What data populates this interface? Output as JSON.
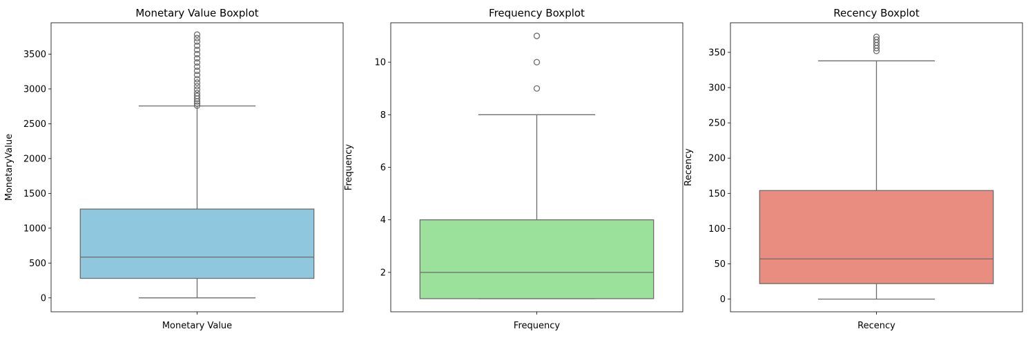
{
  "chart_data": [
    {
      "type": "box",
      "title": "Monetary Value Boxplot",
      "xlabel": "",
      "ylabel": "MonetaryValue",
      "category": "Monetary Value",
      "color": "#8fc8de",
      "ylim": [
        -200,
        3950
      ],
      "yticks": [
        0,
        500,
        1000,
        1500,
        2000,
        2500,
        3000,
        3500
      ],
      "box": {
        "min": 0,
        "q1": 280,
        "median": 585,
        "q3": 1275,
        "max": 2755
      },
      "outliers": [
        2760,
        2790,
        2820,
        2860,
        2900,
        2940,
        2990,
        3040,
        3090,
        3140,
        3200,
        3260,
        3320,
        3380,
        3440,
        3500,
        3560,
        3620,
        3680,
        3730,
        3780
      ]
    },
    {
      "type": "box",
      "title": "Frequency Boxplot",
      "xlabel": "",
      "ylabel": "Frequency",
      "category": "Frequency",
      "color": "#9be19b",
      "ylim": [
        0.5,
        11.5
      ],
      "yticks": [
        2,
        4,
        6,
        8,
        10
      ],
      "box": {
        "min": 1,
        "q1": 1,
        "median": 2,
        "q3": 4,
        "max": 8
      },
      "outliers": [
        9,
        10,
        11
      ]
    },
    {
      "type": "box",
      "title": "Recency Boxplot",
      "xlabel": "",
      "ylabel": "Recency",
      "category": "Recency",
      "color": "#e88d80",
      "ylim": [
        -18,
        392
      ],
      "yticks": [
        0,
        50,
        100,
        150,
        200,
        250,
        300,
        350
      ],
      "box": {
        "min": 0,
        "q1": 22,
        "median": 57,
        "q3": 154,
        "max": 338
      },
      "outliers": [
        352,
        356,
        360,
        364,
        368,
        372
      ]
    }
  ]
}
